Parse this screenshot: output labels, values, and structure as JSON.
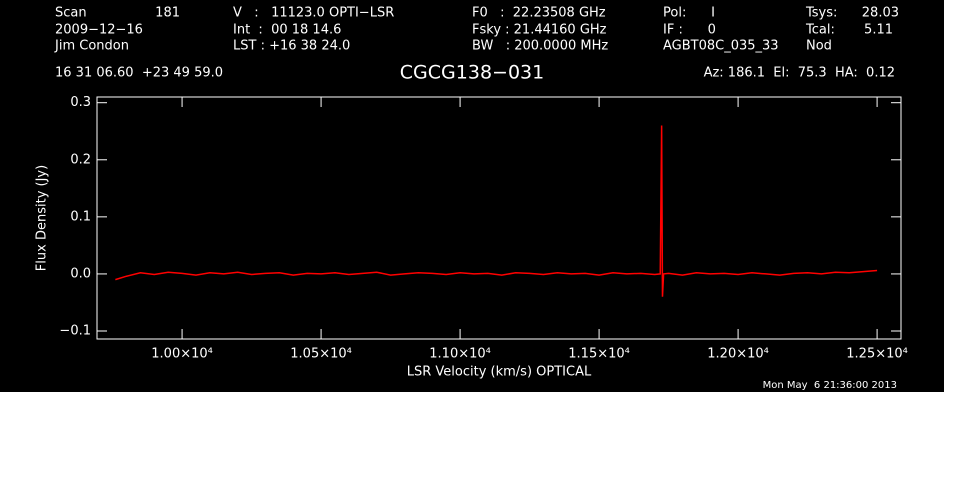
{
  "chart_data": {
    "type": "line",
    "title": "CGCG138−031",
    "header": [
      "Scan",
      "181",
      "2009−12−16",
      "Jim Condon",
      "V   :   11123.0 OPTI−LSR",
      "Int  :  00 18 14.6",
      "LST : +16 38 24.0",
      "F0   :  22.23508 GHz",
      "Fsky : 21.44160 GHz",
      "BW   : 200.0000 MHz",
      "Pol:      I",
      "IF :      0",
      "AGBT08C_035_33",
      "Tsys:",
      "28.03",
      "Tcal:",
      "5.11",
      "Nod",
      "16 31 06.60  +23 49 59.0",
      "Az: 186.1  El:  75.3  HA:  0.12"
    ],
    "x_label": "LSR Velocity (km/s) OPTICAL",
    "y_label": "Flux Density (Jy)",
    "timestamp": "Mon May  6 21:36:00 2013",
    "x": [
      9760,
      9800,
      9850,
      9900,
      9950,
      10000,
      10050,
      10100,
      10150,
      10200,
      10250,
      10300,
      10350,
      10400,
      10450,
      10500,
      10550,
      10600,
      10650,
      10700,
      10750,
      10800,
      10850,
      10900,
      10950,
      11000,
      11050,
      11100,
      11150,
      11200,
      11250,
      11300,
      11350,
      11400,
      11450,
      11500,
      11550,
      11600,
      11650,
      11700,
      11720,
      11725,
      11728,
      11732,
      11750,
      11800,
      11850,
      11900,
      11950,
      12000,
      12050,
      12100,
      12150,
      12200,
      12250,
      12300,
      12350,
      12400,
      12450,
      12500
    ],
    "series": [
      {
        "name": "CGCG138−031",
        "color": "#ff0000",
        "values": [
          -0.01,
          -0.004,
          0.002,
          -0.001,
          0.003,
          0.001,
          -0.002,
          0.002,
          0.0,
          0.003,
          -0.001,
          0.001,
          0.002,
          -0.002,
          0.001,
          0.0,
          0.002,
          -0.001,
          0.001,
          0.003,
          -0.002,
          0.0,
          0.002,
          0.001,
          -0.001,
          0.002,
          0.0,
          0.001,
          -0.002,
          0.002,
          0.001,
          -0.001,
          0.002,
          0.0,
          0.001,
          -0.002,
          0.002,
          0.0,
          0.001,
          -0.001,
          0.0,
          0.26,
          -0.04,
          0.0,
          0.001,
          -0.002,
          0.002,
          0.0,
          0.001,
          -0.001,
          0.002,
          0.0,
          -0.002,
          0.001,
          0.002,
          0.0,
          0.003,
          0.002,
          0.004,
          0.006
        ]
      }
    ],
    "xlim": [
      9694,
      12586
    ],
    "xticks": [
      {
        "value": 10000,
        "label": "1.00×10⁴"
      },
      {
        "value": 10500,
        "label": "1.05×10⁴"
      },
      {
        "value": 11000,
        "label": "1.10×10⁴"
      },
      {
        "value": 11500,
        "label": "1.15×10⁴"
      },
      {
        "value": 12000,
        "label": "1.20×10⁴"
      },
      {
        "value": 12500,
        "label": "1.25×10⁴"
      }
    ],
    "ylim": [
      -0.114,
      0.31
    ],
    "yticks": [
      {
        "value": -0.1,
        "label": "−0.1"
      },
      {
        "value": 0,
        "label": "0.0"
      },
      0.1,
      0.2,
      0.3
    ],
    "grid": false
  }
}
